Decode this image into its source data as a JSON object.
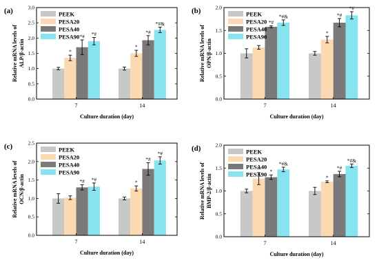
{
  "colors": {
    "PEEK": "#c8c8c8",
    "PESA20": "#fcd9b0",
    "PESA40": "#7a7a7a",
    "PESA90": "#86e3ef"
  },
  "chart_data": [
    {
      "panel": "(a)",
      "type": "bar",
      "categories": [
        "7",
        "14"
      ],
      "xlabel": "Culture duration (day)",
      "ylabel_line1": "Relative mRNA levels of",
      "ylabel_line2": "ALP/β-actin",
      "ylim": [
        0.0,
        3.0
      ],
      "yticks": [
        "0.0",
        "0.5",
        "1.0",
        "1.5",
        "2.0",
        "2.5",
        "3.0"
      ],
      "legend_position": "top-left",
      "series": [
        {
          "name": "PEEK",
          "values": [
            1.0,
            1.0
          ],
          "errors": [
            0.04,
            0.05
          ],
          "annotations": [
            "",
            ""
          ]
        },
        {
          "name": "PESA20",
          "values": [
            1.35,
            1.5
          ],
          "errors": [
            0.09,
            0.1
          ],
          "annotations": [
            "*",
            "*"
          ]
        },
        {
          "name": "PESA40",
          "values": [
            1.7,
            1.93
          ],
          "errors": [
            0.24,
            0.15
          ],
          "annotations": [
            "*#",
            "*#"
          ]
        },
        {
          "name": "PESA90",
          "values": [
            1.9,
            2.27
          ],
          "errors": [
            0.12,
            0.09
          ],
          "annotations": [
            "*#",
            "*#&"
          ]
        }
      ]
    },
    {
      "panel": "(b)",
      "type": "bar",
      "categories": [
        "7",
        "14"
      ],
      "xlabel": "Culture duration (day)",
      "ylabel_line1": "Relative mRNA levels of",
      "ylabel_line2": "OPN/β-actin",
      "ylim": [
        0.0,
        2.0
      ],
      "yticks": [
        "0.0",
        "0.5",
        "1.0",
        "1.5",
        "2.0"
      ],
      "legend_position": "top-left",
      "series": [
        {
          "name": "PEEK",
          "values": [
            1.0,
            1.0
          ],
          "errors": [
            0.1,
            0.04
          ],
          "annotations": [
            "",
            ""
          ]
        },
        {
          "name": "PESA20",
          "values": [
            1.13,
            1.3
          ],
          "errors": [
            0.04,
            0.07
          ],
          "annotations": [
            "",
            "*"
          ]
        },
        {
          "name": "PESA40",
          "values": [
            1.58,
            1.67
          ],
          "errors": [
            0.02,
            0.09
          ],
          "annotations": [
            "*#",
            "*#"
          ]
        },
        {
          "name": "PESA90",
          "values": [
            1.67,
            1.83
          ],
          "errors": [
            0.06,
            0.08
          ],
          "annotations": [
            "*#&",
            "*#"
          ]
        }
      ]
    },
    {
      "panel": "(c)",
      "type": "bar",
      "categories": [
        "7",
        "14"
      ],
      "xlabel": "Culture duration (day)",
      "ylabel_line1": "Relative mRNA levels of",
      "ylabel_line2": "OCN/β-actin",
      "ylim": [
        0.0,
        2.5
      ],
      "yticks": [
        "0.0",
        "0.5",
        "1.0",
        "1.5",
        "2.0",
        "2.5"
      ],
      "legend_position": "top-left",
      "series": [
        {
          "name": "PEEK",
          "values": [
            1.0,
            1.0
          ],
          "errors": [
            0.13,
            0.04
          ],
          "annotations": [
            "",
            ""
          ]
        },
        {
          "name": "PESA20",
          "values": [
            1.02,
            1.27
          ],
          "errors": [
            0.05,
            0.07
          ],
          "annotations": [
            "",
            "*"
          ]
        },
        {
          "name": "PESA40",
          "values": [
            1.3,
            1.8
          ],
          "errors": [
            0.07,
            0.17
          ],
          "annotations": [
            "*#",
            "*#"
          ]
        },
        {
          "name": "PESA90",
          "values": [
            1.32,
            2.03
          ],
          "errors": [
            0.1,
            0.1
          ],
          "annotations": [
            "*#",
            "*#"
          ]
        }
      ]
    },
    {
      "panel": "(d)",
      "type": "bar",
      "categories": [
        "7",
        "14"
      ],
      "xlabel": "Culture duration (day)",
      "ylabel_line1": "Relative mRNA levels of",
      "ylabel_line2": "BMP-2/β-actin",
      "ylim": [
        0.0,
        2.0
      ],
      "yticks": [
        "0.0",
        "0.5",
        "1.0",
        "1.5",
        "2.0"
      ],
      "legend_position": "top-left",
      "series": [
        {
          "name": "PEEK",
          "values": [
            1.0,
            1.0
          ],
          "errors": [
            0.04,
            0.08
          ],
          "annotations": [
            "",
            ""
          ]
        },
        {
          "name": "PESA20",
          "values": [
            1.27,
            1.2
          ],
          "errors": [
            0.13,
            0.02
          ],
          "annotations": [
            "*",
            "*"
          ]
        },
        {
          "name": "PESA40",
          "values": [
            1.3,
            1.37
          ],
          "errors": [
            0.05,
            0.06
          ],
          "annotations": [
            "*",
            "*#"
          ]
        },
        {
          "name": "PESA90",
          "values": [
            1.47,
            1.55
          ],
          "errors": [
            0.05,
            0.04
          ],
          "annotations": [
            "*#&",
            "*#&"
          ]
        }
      ]
    }
  ]
}
